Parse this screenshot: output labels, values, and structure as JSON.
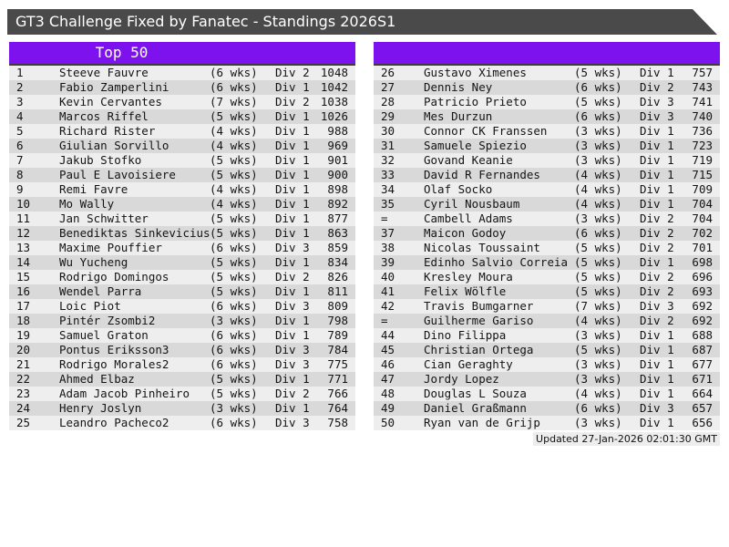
{
  "titlebar": {
    "title": "GT3 Challenge Fixed by Fanatec - Standings 2026S1"
  },
  "colors": {
    "accent_purple": "#7d12ef",
    "titlebar_gray": "#4a4a4a",
    "row_odd": "#eeeeee",
    "row_even": "#d9d9d9"
  },
  "panels": {
    "left": {
      "header": "Top 50",
      "rows": [
        {
          "rank": "1",
          "name": "Steeve Fauvre",
          "weeks": "(6 wks)",
          "division": "Div 2",
          "points": "1048"
        },
        {
          "rank": "2",
          "name": "Fabio Zamperlini",
          "weeks": "(6 wks)",
          "division": "Div 1",
          "points": "1042"
        },
        {
          "rank": "3",
          "name": "Kevin Cervantes",
          "weeks": "(7 wks)",
          "division": "Div 2",
          "points": "1038"
        },
        {
          "rank": "4",
          "name": "Marcos Riffel",
          "weeks": "(5 wks)",
          "division": "Div 1",
          "points": "1026"
        },
        {
          "rank": "5",
          "name": "Richard Rister",
          "weeks": "(4 wks)",
          "division": "Div 1",
          "points": "988"
        },
        {
          "rank": "6",
          "name": "Giulian Sorvillo",
          "weeks": "(4 wks)",
          "division": "Div 1",
          "points": "969"
        },
        {
          "rank": "7",
          "name": "Jakub Stofko",
          "weeks": "(5 wks)",
          "division": "Div 1",
          "points": "901"
        },
        {
          "rank": "8",
          "name": "Paul E Lavoisiere",
          "weeks": "(5 wks)",
          "division": "Div 1",
          "points": "900"
        },
        {
          "rank": "9",
          "name": "Remi Favre",
          "weeks": "(4 wks)",
          "division": "Div 1",
          "points": "898"
        },
        {
          "rank": "10",
          "name": "Mo Wally",
          "weeks": "(4 wks)",
          "division": "Div 1",
          "points": "892"
        },
        {
          "rank": "11",
          "name": "Jan Schwitter",
          "weeks": "(5 wks)",
          "division": "Div 1",
          "points": "877"
        },
        {
          "rank": "12",
          "name": "Benediktas Sinkevicius",
          "weeks": "(5 wks)",
          "division": "Div 1",
          "points": "863"
        },
        {
          "rank": "13",
          "name": "Maxime Pouffier",
          "weeks": "(6 wks)",
          "division": "Div 3",
          "points": "859"
        },
        {
          "rank": "14",
          "name": "Wu Yucheng",
          "weeks": "(5 wks)",
          "division": "Div 1",
          "points": "834"
        },
        {
          "rank": "15",
          "name": "Rodrigo Domingos",
          "weeks": "(5 wks)",
          "division": "Div 2",
          "points": "826"
        },
        {
          "rank": "16",
          "name": "Wendel Parra",
          "weeks": "(5 wks)",
          "division": "Div 1",
          "points": "811"
        },
        {
          "rank": "17",
          "name": "Loic Piot",
          "weeks": "(6 wks)",
          "division": "Div 3",
          "points": "809"
        },
        {
          "rank": "18",
          "name": "Pintér Zsombi2",
          "weeks": "(3 wks)",
          "division": "Div 1",
          "points": "798"
        },
        {
          "rank": "19",
          "name": "Samuel Graton",
          "weeks": "(6 wks)",
          "division": "Div 1",
          "points": "789"
        },
        {
          "rank": "20",
          "name": "Pontus Eriksson3",
          "weeks": "(6 wks)",
          "division": "Div 3",
          "points": "784"
        },
        {
          "rank": "21",
          "name": "Rodrigo Morales2",
          "weeks": "(6 wks)",
          "division": "Div 3",
          "points": "775"
        },
        {
          "rank": "22",
          "name": "Ahmed Elbaz",
          "weeks": "(5 wks)",
          "division": "Div 1",
          "points": "771"
        },
        {
          "rank": "23",
          "name": "Adam Jacob Pinheiro",
          "weeks": "(5 wks)",
          "division": "Div 2",
          "points": "766"
        },
        {
          "rank": "24",
          "name": "Henry Joslyn",
          "weeks": "(3 wks)",
          "division": "Div 1",
          "points": "764"
        },
        {
          "rank": "25",
          "name": "Leandro Pacheco2",
          "weeks": "(6 wks)",
          "division": "Div 3",
          "points": "758"
        }
      ]
    },
    "right": {
      "header": "",
      "rows": [
        {
          "rank": "26",
          "name": "Gustavo Ximenes",
          "weeks": "(5 wks)",
          "division": "Div 1",
          "points": "757"
        },
        {
          "rank": "27",
          "name": "Dennis Ney",
          "weeks": "(6 wks)",
          "division": "Div 2",
          "points": "743"
        },
        {
          "rank": "28",
          "name": "Patricio Prieto",
          "weeks": "(5 wks)",
          "division": "Div 3",
          "points": "741"
        },
        {
          "rank": "29",
          "name": "Mes Durzun",
          "weeks": "(6 wks)",
          "division": "Div 3",
          "points": "740"
        },
        {
          "rank": "30",
          "name": "Connor CK Franssen",
          "weeks": "(3 wks)",
          "division": "Div 1",
          "points": "736"
        },
        {
          "rank": "31",
          "name": "Samuele Spiezio",
          "weeks": "(3 wks)",
          "division": "Div 1",
          "points": "723"
        },
        {
          "rank": "32",
          "name": "Govand Keanie",
          "weeks": "(3 wks)",
          "division": "Div 1",
          "points": "719"
        },
        {
          "rank": "33",
          "name": "David R Fernandes",
          "weeks": "(4 wks)",
          "division": "Div 1",
          "points": "715"
        },
        {
          "rank": "34",
          "name": "Olaf Socko",
          "weeks": "(4 wks)",
          "division": "Div 1",
          "points": "709"
        },
        {
          "rank": "35",
          "name": "Cyril Nousbaum",
          "weeks": "(4 wks)",
          "division": "Div 1",
          "points": "704"
        },
        {
          "rank": "=",
          "name": "Cambell Adams",
          "weeks": "(3 wks)",
          "division": "Div 2",
          "points": "704"
        },
        {
          "rank": "37",
          "name": "Maicon Godoy",
          "weeks": "(6 wks)",
          "division": "Div 2",
          "points": "702"
        },
        {
          "rank": "38",
          "name": "Nicolas Toussaint",
          "weeks": "(5 wks)",
          "division": "Div 2",
          "points": "701"
        },
        {
          "rank": "39",
          "name": "Edinho Salvio Correia",
          "weeks": "(5 wks)",
          "division": "Div 1",
          "points": "698"
        },
        {
          "rank": "40",
          "name": "Kresley Moura",
          "weeks": "(5 wks)",
          "division": "Div 2",
          "points": "696"
        },
        {
          "rank": "41",
          "name": "Felix Wölfle",
          "weeks": "(5 wks)",
          "division": "Div 2",
          "points": "693"
        },
        {
          "rank": "42",
          "name": "Travis Bumgarner",
          "weeks": "(7 wks)",
          "division": "Div 3",
          "points": "692"
        },
        {
          "rank": "=",
          "name": "Guilherme Gariso",
          "weeks": "(4 wks)",
          "division": "Div 2",
          "points": "692"
        },
        {
          "rank": "44",
          "name": "Dino Filippa",
          "weeks": "(3 wks)",
          "division": "Div 1",
          "points": "688"
        },
        {
          "rank": "45",
          "name": "Christian Ortega",
          "weeks": "(5 wks)",
          "division": "Div 1",
          "points": "687"
        },
        {
          "rank": "46",
          "name": "Cian Geraghty",
          "weeks": "(3 wks)",
          "division": "Div 1",
          "points": "677"
        },
        {
          "rank": "47",
          "name": "Jordy Lopez",
          "weeks": "(3 wks)",
          "division": "Div 1",
          "points": "671"
        },
        {
          "rank": "48",
          "name": "Douglas L Souza",
          "weeks": "(4 wks)",
          "division": "Div 1",
          "points": "664"
        },
        {
          "rank": "49",
          "name": "Daniel Graßmann",
          "weeks": "(6 wks)",
          "division": "Div 3",
          "points": "657"
        },
        {
          "rank": "50",
          "name": "Ryan van de Grijp",
          "weeks": "(3 wks)",
          "division": "Div 1",
          "points": "656"
        }
      ]
    }
  },
  "footer": {
    "updated": "Updated 27-Jan-2026 02:01:30 GMT"
  }
}
